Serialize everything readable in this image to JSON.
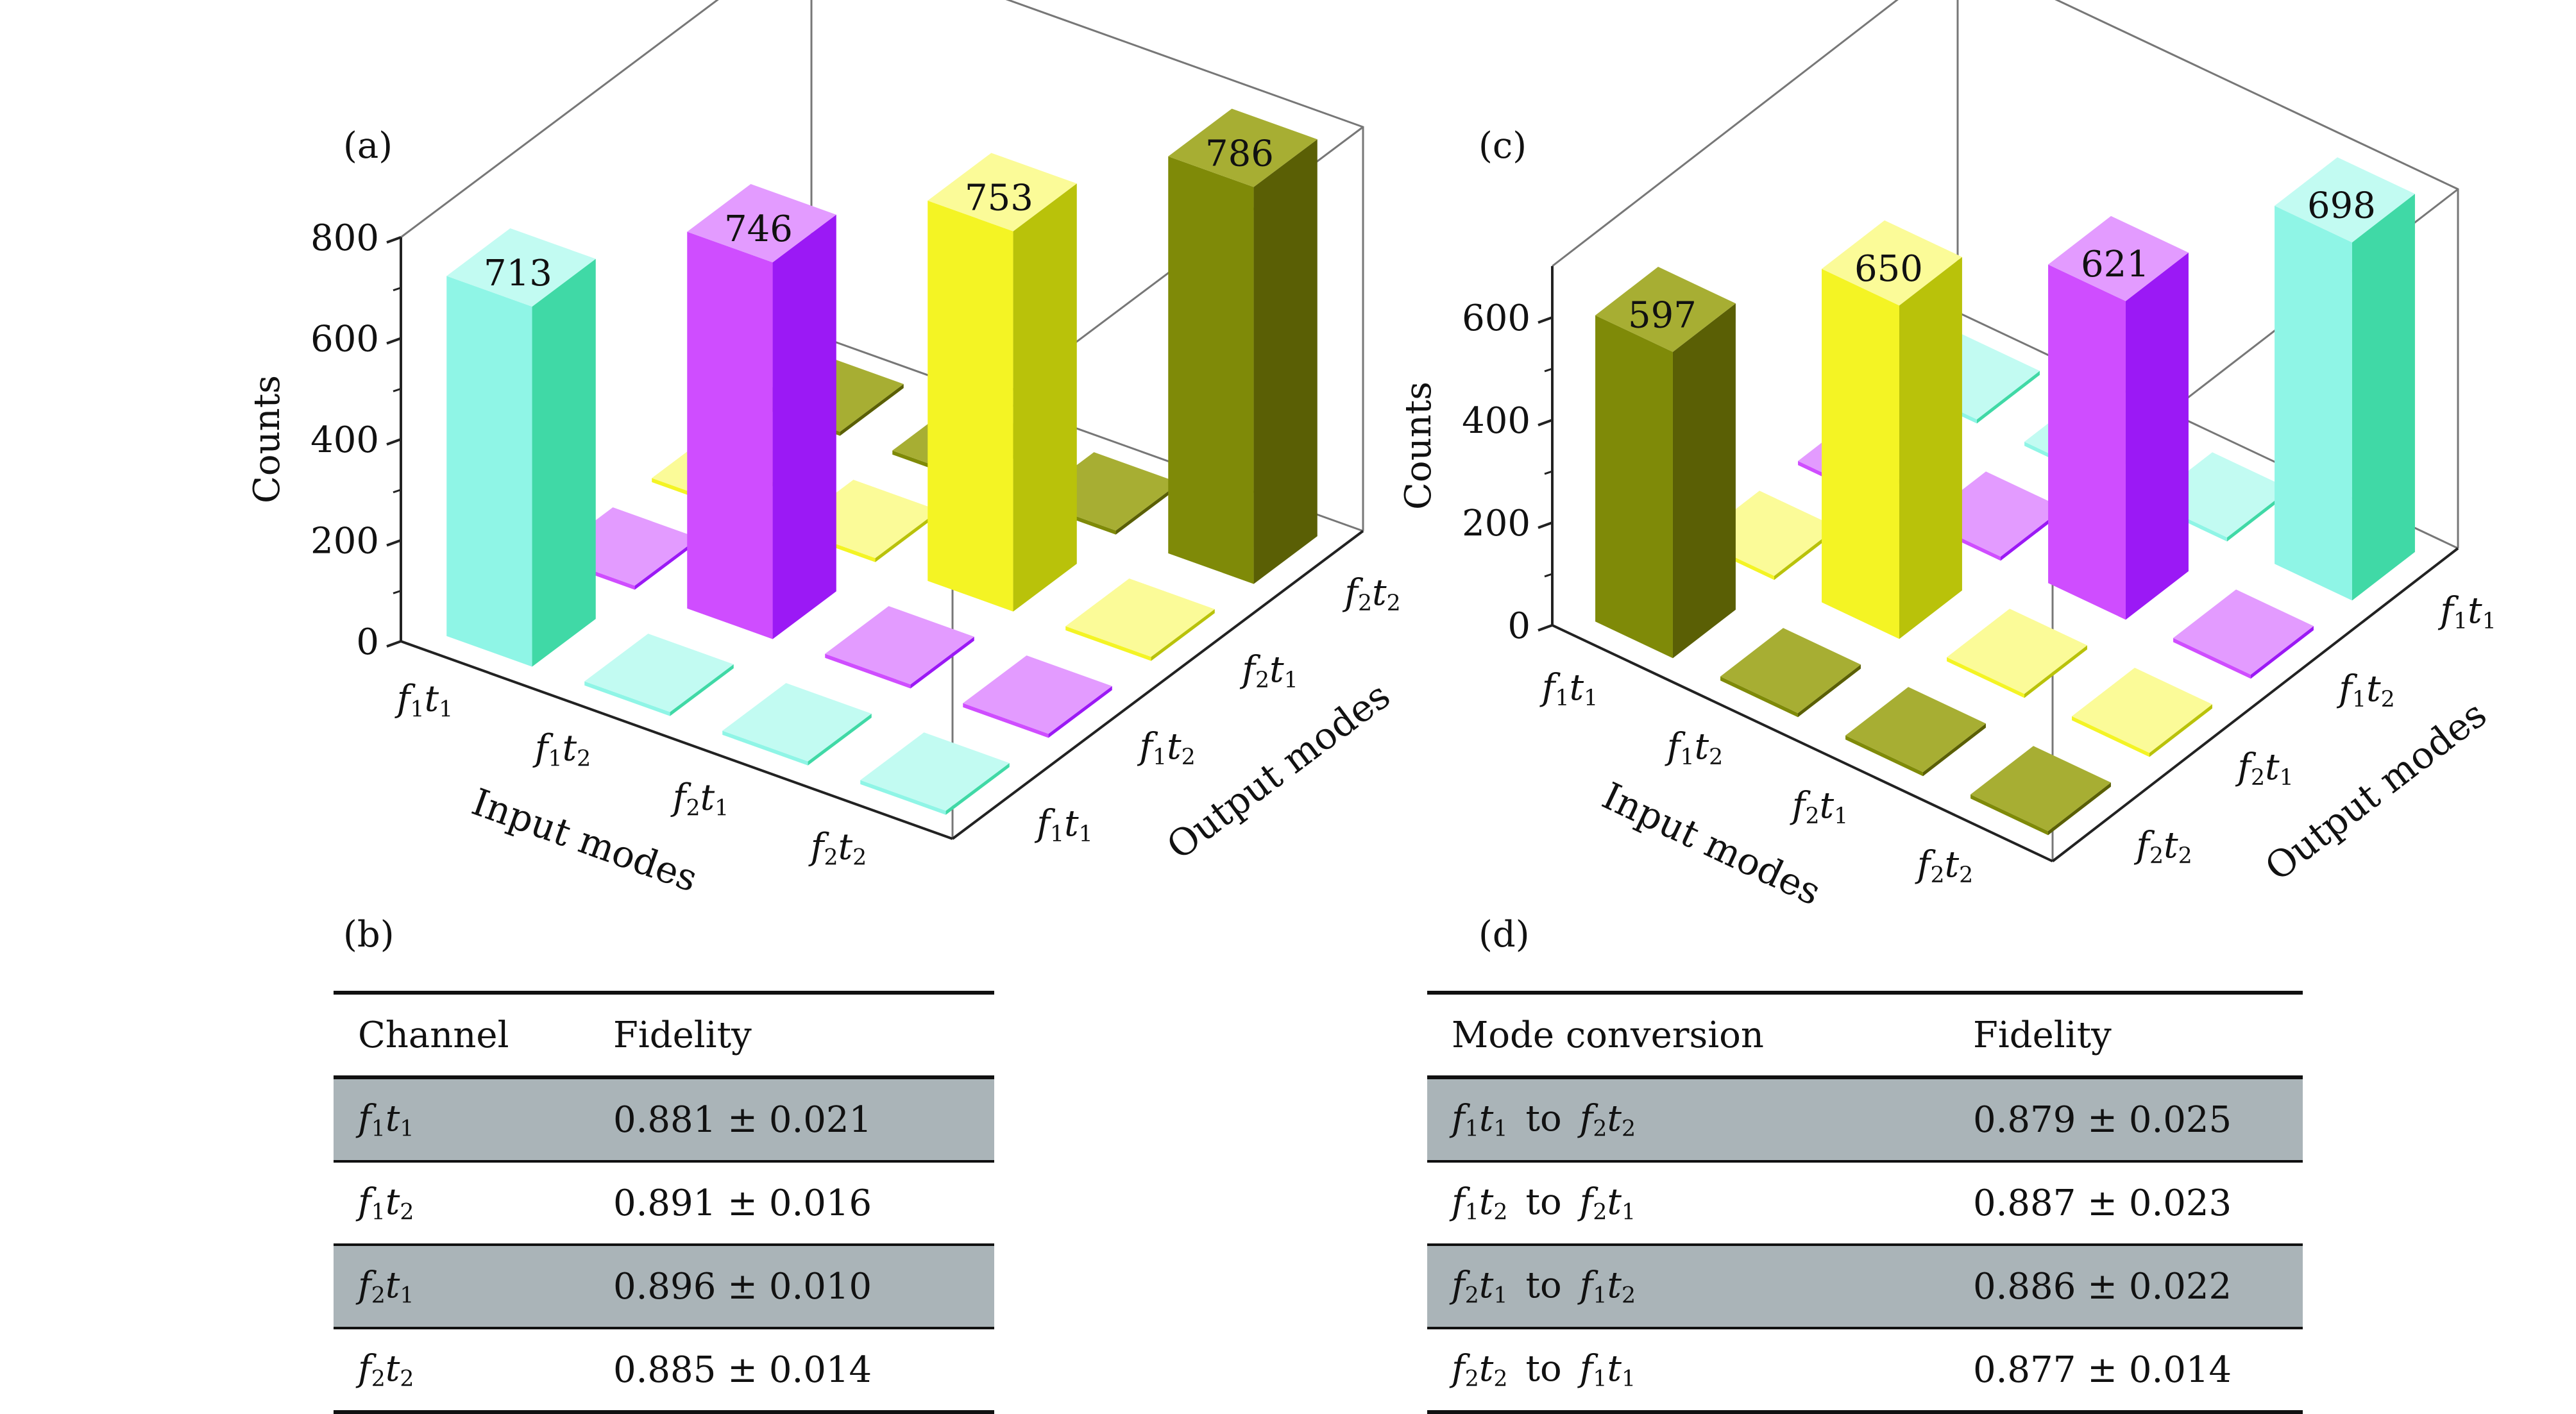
{
  "panels": {
    "a": "(a)",
    "b": "(b)",
    "c": "(c)",
    "d": "(d)"
  },
  "chart_data": [
    {
      "type": "bar3d",
      "panel": "(a)",
      "zlabel": "Counts",
      "xlabel": "Input modes",
      "ylabel": "Output modes",
      "zlim": [
        0,
        800
      ],
      "zticks": [
        "0",
        "200",
        "400",
        "600",
        "800"
      ],
      "input_modes": [
        "f1t1",
        "f1t2",
        "f2t1",
        "f2t2"
      ],
      "output_modes": [
        "f1t1",
        "f1t2",
        "f2t1",
        "f2t2"
      ],
      "bars": [
        {
          "input": "f1t1",
          "output": "f1t1",
          "value": 713,
          "label": "713"
        },
        {
          "input": "f1t2",
          "output": "f1t2",
          "value": 746,
          "label": "746"
        },
        {
          "input": "f2t1",
          "output": "f2t1",
          "value": 753,
          "label": "753"
        },
        {
          "input": "f2t2",
          "output": "f2t2",
          "value": 786,
          "label": "786"
        }
      ],
      "small_value": 8
    },
    {
      "type": "bar3d",
      "panel": "(c)",
      "zlabel": "Counts",
      "xlabel": "Input modes",
      "ylabel": "Output modes",
      "zlim": [
        0,
        700
      ],
      "zticks": [
        "0",
        "200",
        "400",
        "600"
      ],
      "input_modes": [
        "f1t1",
        "f1t2",
        "f2t1",
        "f2t2"
      ],
      "output_modes": [
        "f2t2",
        "f2t1",
        "f1t2",
        "f1t1"
      ],
      "bars": [
        {
          "input": "f1t1",
          "output": "f2t2",
          "value": 597,
          "label": "597"
        },
        {
          "input": "f1t2",
          "output": "f2t1",
          "value": 650,
          "label": "650"
        },
        {
          "input": "f2t1",
          "output": "f1t2",
          "value": 621,
          "label": "621"
        },
        {
          "input": "f2t2",
          "output": "f1t1",
          "value": 698,
          "label": "698"
        }
      ],
      "small_value": 8
    }
  ],
  "colors": {
    "cyan": [
      "#8ff5e6",
      "#40d9a6",
      "#c2fbf2"
    ],
    "magenta": [
      "#cf4dff",
      "#9b19f5",
      "#e39bff"
    ],
    "yellow": [
      "#f4f424",
      "#b9c20a",
      "#fbfb98"
    ],
    "olive": [
      "#7f8a08",
      "#5a5f05",
      "#a7ae33"
    ]
  },
  "table_b": {
    "headers": [
      "Channel",
      "Fidelity"
    ],
    "rows": [
      {
        "channel": "f1t1",
        "fidelity": "0.881 ± 0.021"
      },
      {
        "channel": "f1t2",
        "fidelity": "0.891 ± 0.016"
      },
      {
        "channel": "f2t1",
        "fidelity": "0.896 ± 0.010"
      },
      {
        "channel": "f2t2",
        "fidelity": "0.885 ± 0.014"
      }
    ]
  },
  "table_d": {
    "headers": [
      "Mode conversion",
      "Fidelity"
    ],
    "to_word": "to",
    "rows": [
      {
        "from": "f1t1",
        "to": "f2t2",
        "fidelity": "0.879 ± 0.025"
      },
      {
        "from": "f1t2",
        "to": "f2t1",
        "fidelity": "0.887 ± 0.023"
      },
      {
        "from": "f2t1",
        "to": "f1t2",
        "fidelity": "0.886 ± 0.022"
      },
      {
        "from": "f2t2",
        "to": "f1t1",
        "fidelity": "0.877 ± 0.014"
      }
    ]
  }
}
